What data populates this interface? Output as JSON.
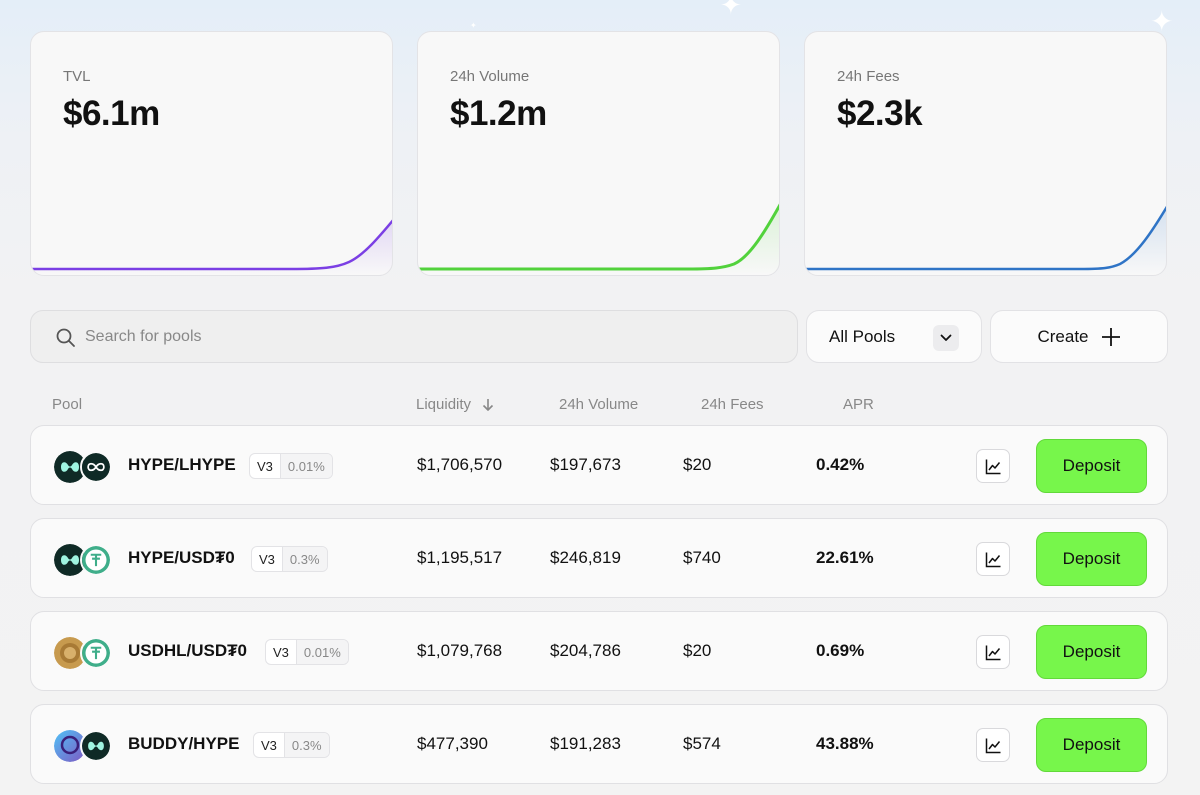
{
  "stats": {
    "tvl": {
      "label": "TVL",
      "value": "$6.1m",
      "color": "#7b3fe4"
    },
    "volume": {
      "label": "24h Volume",
      "value": "$1.2m",
      "color": "#52d23c"
    },
    "fees": {
      "label": "24h Fees",
      "value": "$2.3k",
      "color": "#2f74c6"
    }
  },
  "search": {
    "placeholder": "Search for pools"
  },
  "filter": {
    "selected": "All Pools"
  },
  "create": {
    "label": "Create"
  },
  "table": {
    "headers": {
      "pool": "Pool",
      "liquidity": "Liquidity",
      "volume": "24h Volume",
      "fees": "24h Fees",
      "apr": "APR"
    },
    "deposit_label": "Deposit",
    "rows": [
      {
        "pair": "HYPE/LHYPE",
        "version": "V3",
        "fee_tier": "0.01%",
        "liquidity": "$1,706,570",
        "volume": "$197,673",
        "fees": "$20",
        "apr": "0.42%",
        "token1_icon": "hype-icon",
        "token2_icon": "lhype-icon"
      },
      {
        "pair": "HYPE/USD₮0",
        "version": "V3",
        "fee_tier": "0.3%",
        "liquidity": "$1,195,517",
        "volume": "$246,819",
        "fees": "$740",
        "apr": "22.61%",
        "token1_icon": "hype-icon",
        "token2_icon": "usdt0-icon"
      },
      {
        "pair": "USDHL/USD₮0",
        "version": "V3",
        "fee_tier": "0.01%",
        "liquidity": "$1,079,768",
        "volume": "$204,786",
        "fees": "$20",
        "apr": "0.69%",
        "token1_icon": "usdhl-icon",
        "token2_icon": "usdt0-icon"
      },
      {
        "pair": "BUDDY/HYPE",
        "version": "V3",
        "fee_tier": "0.3%",
        "liquidity": "$477,390",
        "volume": "$191,283",
        "fees": "$574",
        "apr": "43.88%",
        "token1_icon": "buddy-icon",
        "token2_icon": "hype-icon"
      }
    ]
  },
  "colors": {
    "deposit": "#77f64b",
    "hype": "#0f2a26",
    "usdt0": "#3fae8a",
    "usdhl": "#c79a4e"
  }
}
